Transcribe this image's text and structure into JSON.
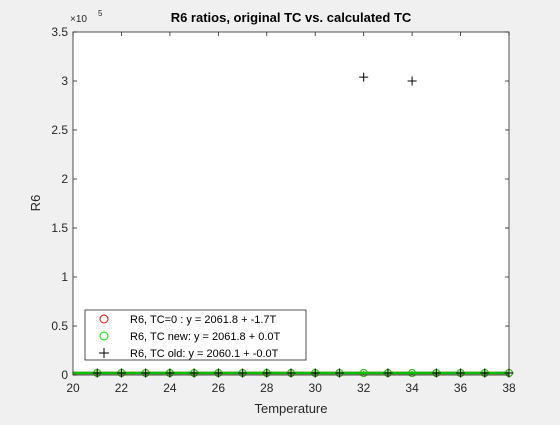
{
  "chart_data": {
    "type": "scatter",
    "title": "R6 ratios, original TC vs. calculated TC",
    "xlabel": "Temperature",
    "ylabel": "R6",
    "xlim": [
      20,
      38
    ],
    "ylim": [
      0,
      350000
    ],
    "y_exponent_label": "×10",
    "y_exponent_power": "5",
    "x_ticks": [
      20,
      22,
      24,
      26,
      28,
      30,
      32,
      34,
      36,
      38
    ],
    "y_ticks": [
      0,
      50000,
      100000,
      150000,
      200000,
      250000,
      300000,
      350000
    ],
    "y_tick_labels": [
      "0",
      "0.5",
      "1",
      "1.5",
      "2",
      "2.5",
      "3",
      "3.5"
    ],
    "grid": false,
    "legend_position": "bottom-left",
    "fit_lines": [
      {
        "color": "#e00000",
        "intercept": 2061.8,
        "slope": -1.7
      },
      {
        "color": "#00c000",
        "intercept": 2061.8,
        "slope": 0.0
      }
    ],
    "series": [
      {
        "name": "R6, TC=0  :  y = 2061.8 + -1.7T",
        "marker": "circle",
        "color": "#e00000",
        "x": [
          21,
          22,
          23,
          24,
          25,
          26,
          27,
          28,
          29,
          30,
          31,
          32,
          33,
          34,
          35,
          36,
          37,
          38
        ],
        "y": [
          2026,
          2024,
          2022,
          2021,
          2019,
          2017,
          2016,
          2014,
          2012,
          2011,
          2009,
          2007,
          2005,
          2004,
          2002,
          2000,
          1999,
          1997
        ]
      },
      {
        "name": "R6, TC new: y = 2061.8 + 0.0T",
        "marker": "circle",
        "color": "#00e000",
        "x": [
          21,
          22,
          23,
          24,
          25,
          26,
          27,
          28,
          29,
          30,
          31,
          32,
          33,
          34,
          35,
          36,
          37,
          38
        ],
        "y": [
          2062,
          2062,
          2062,
          2062,
          2062,
          2062,
          2062,
          2062,
          2062,
          2062,
          2062,
          2062,
          2062,
          2062,
          2062,
          2062,
          2062,
          2062
        ]
      },
      {
        "name": "R6, TC old: y = 2060.1 + -0.0T",
        "marker": "plus",
        "color": "#000000",
        "x": [
          21,
          22,
          23,
          24,
          25,
          26,
          27,
          28,
          29,
          30,
          31,
          32,
          33,
          34,
          35,
          36,
          37,
          38
        ],
        "y": [
          2060,
          2060,
          2060,
          2060,
          2060,
          2060,
          2060,
          2060,
          2060,
          2060,
          2060,
          304000,
          2060,
          300000,
          2060,
          2060,
          2060,
          2060
        ]
      }
    ]
  }
}
